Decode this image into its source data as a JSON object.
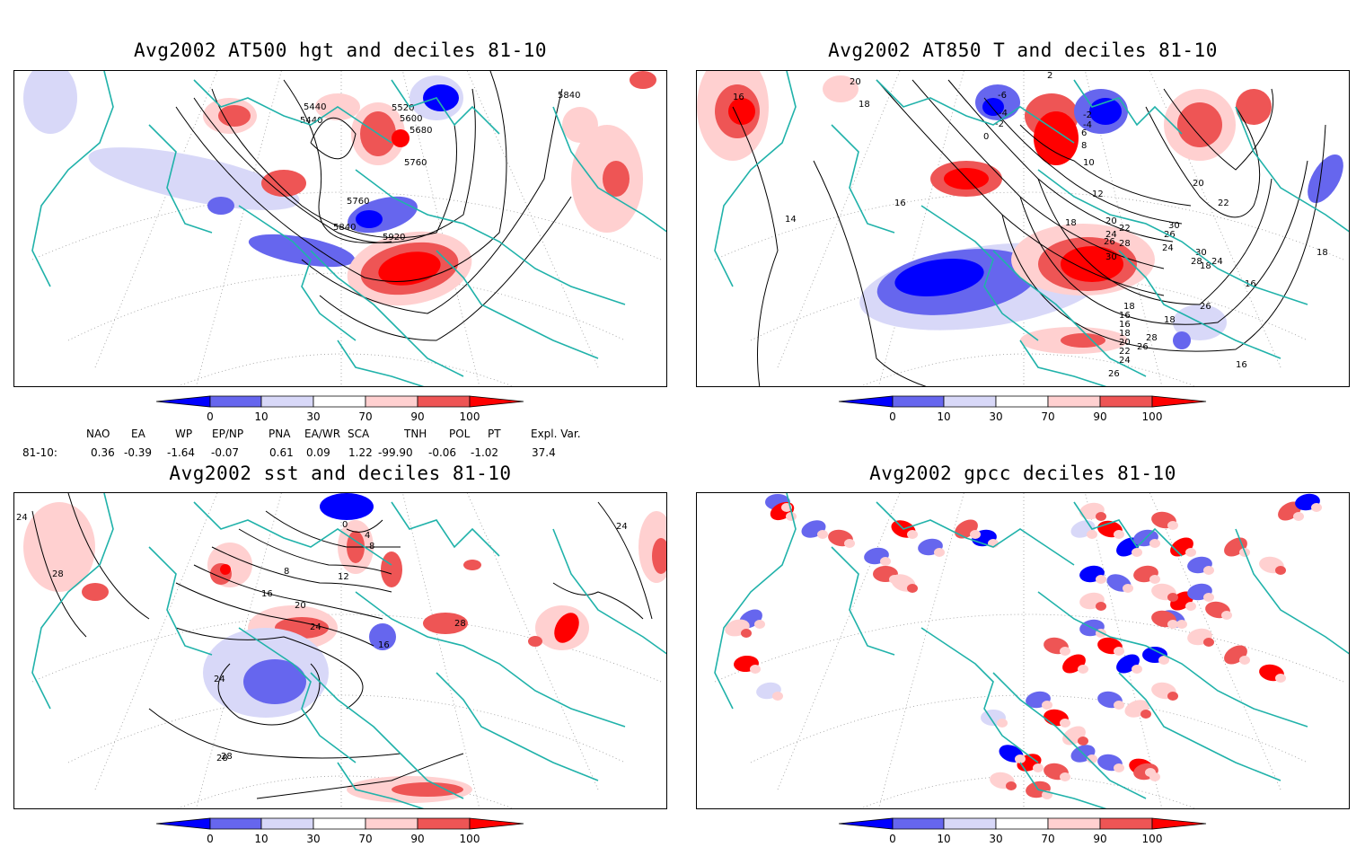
{
  "panels": [
    {
      "title": "Avg2002 AT500 hgt and deciles 81-10",
      "contour_labels": [
        "5440",
        "5440",
        "5520",
        "5600",
        "5680",
        "5760",
        "5760",
        "5840",
        "5920",
        "5840"
      ]
    },
    {
      "title": "Avg2002 AT850 T and deciles 81-10",
      "contour_labels": [
        "16",
        "20",
        "18",
        "2",
        "-6",
        "-4",
        "-2",
        "0",
        "-2",
        "-4",
        "6",
        "8",
        "10",
        "12",
        "14",
        "16",
        "18",
        "20",
        "22",
        "24",
        "26",
        "28",
        "30",
        "24",
        "26",
        "30",
        "18",
        "16",
        "16",
        "18",
        "20",
        "22",
        "24",
        "26",
        "28",
        "30",
        "26",
        "24",
        "22",
        "20",
        "18",
        "16",
        "18",
        "16",
        "28",
        "26",
        "18"
      ]
    },
    {
      "title": "Avg2002 sst and deciles 81-10",
      "contour_labels": [
        "24",
        "28",
        "28",
        "0",
        "4",
        "8",
        "8",
        "12",
        "16",
        "20",
        "16",
        "24",
        "28",
        "24",
        "28",
        "24"
      ]
    },
    {
      "title": "Avg2002 gpcc deciles 81-10",
      "contour_labels": []
    }
  ],
  "colorbar": {
    "labels": [
      "0",
      "10",
      "30",
      "70",
      "90",
      "100"
    ],
    "colors": [
      "#0000ff",
      "#6666ee",
      "#d8d8f8",
      "#ffffff",
      "#ffd0d0",
      "#ee5555",
      "#ff0000"
    ]
  },
  "teleconnections": {
    "headers": [
      "NAO",
      "EA",
      "WP",
      "EP/NP",
      "PNA",
      "EA/WR",
      "SCA",
      "TNH",
      "POL",
      "PT",
      "Expl. Var."
    ],
    "row_label": "81-10:",
    "values": [
      "0.36",
      "-0.39",
      "-1.64",
      "-0.07",
      "0.61",
      "0.09",
      "1.22",
      "-99.90",
      "-0.06",
      "-1.02",
      "37.4"
    ]
  },
  "colors": {
    "coast": "#20b2aa",
    "contour": "#000000",
    "grid": "#999999"
  }
}
